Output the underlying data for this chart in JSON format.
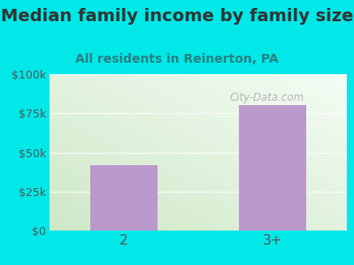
{
  "title": "Median family income by family size",
  "subtitle": "All residents in Reinerton, PA",
  "categories": [
    "2",
    "3+"
  ],
  "values": [
    42000,
    80000
  ],
  "bar_color": "#bb99cc",
  "outer_bg": "#00e8e8",
  "plot_bg_colors": [
    "#f0f8f0",
    "#c8e8c8"
  ],
  "title_color": "#333333",
  "subtitle_color": "#2a8080",
  "tick_color": "#555555",
  "ylim": [
    0,
    100000
  ],
  "yticks": [
    0,
    25000,
    50000,
    75000,
    100000
  ],
  "ytick_labels": [
    "$0",
    "$25k",
    "$50k",
    "$75k",
    "$100k"
  ],
  "watermark": "City-Data.com",
  "title_fontsize": 14,
  "subtitle_fontsize": 10,
  "grid_color": "#ddeedd"
}
